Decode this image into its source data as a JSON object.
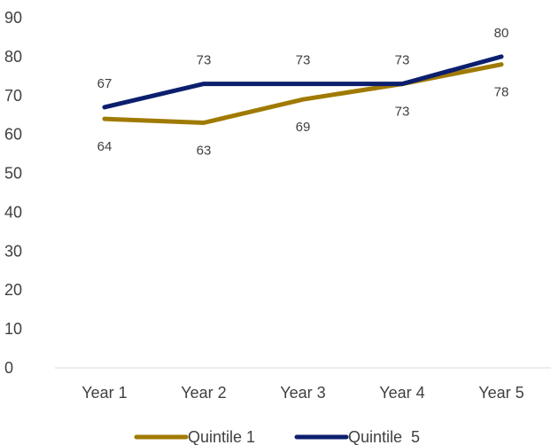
{
  "chart_data": {
    "type": "line",
    "categories": [
      "Year 1",
      "Year 2",
      "Year 3",
      "Year 4",
      "Year 5"
    ],
    "series": [
      {
        "name": "Quintile 1",
        "values": [
          64,
          63,
          69,
          73,
          78
        ],
        "color": "#a07a00",
        "label_position": "below"
      },
      {
        "name": "Quintile  5",
        "values": [
          67,
          73,
          73,
          73,
          80
        ],
        "color": "#0c1f6e",
        "label_position": "above"
      }
    ],
    "ylim": [
      0,
      90
    ],
    "yticks": [
      0,
      10,
      20,
      30,
      40,
      50,
      60,
      70,
      80,
      90
    ],
    "grid": false,
    "legend": "bottom",
    "title": "",
    "xlabel": "",
    "ylabel": ""
  }
}
